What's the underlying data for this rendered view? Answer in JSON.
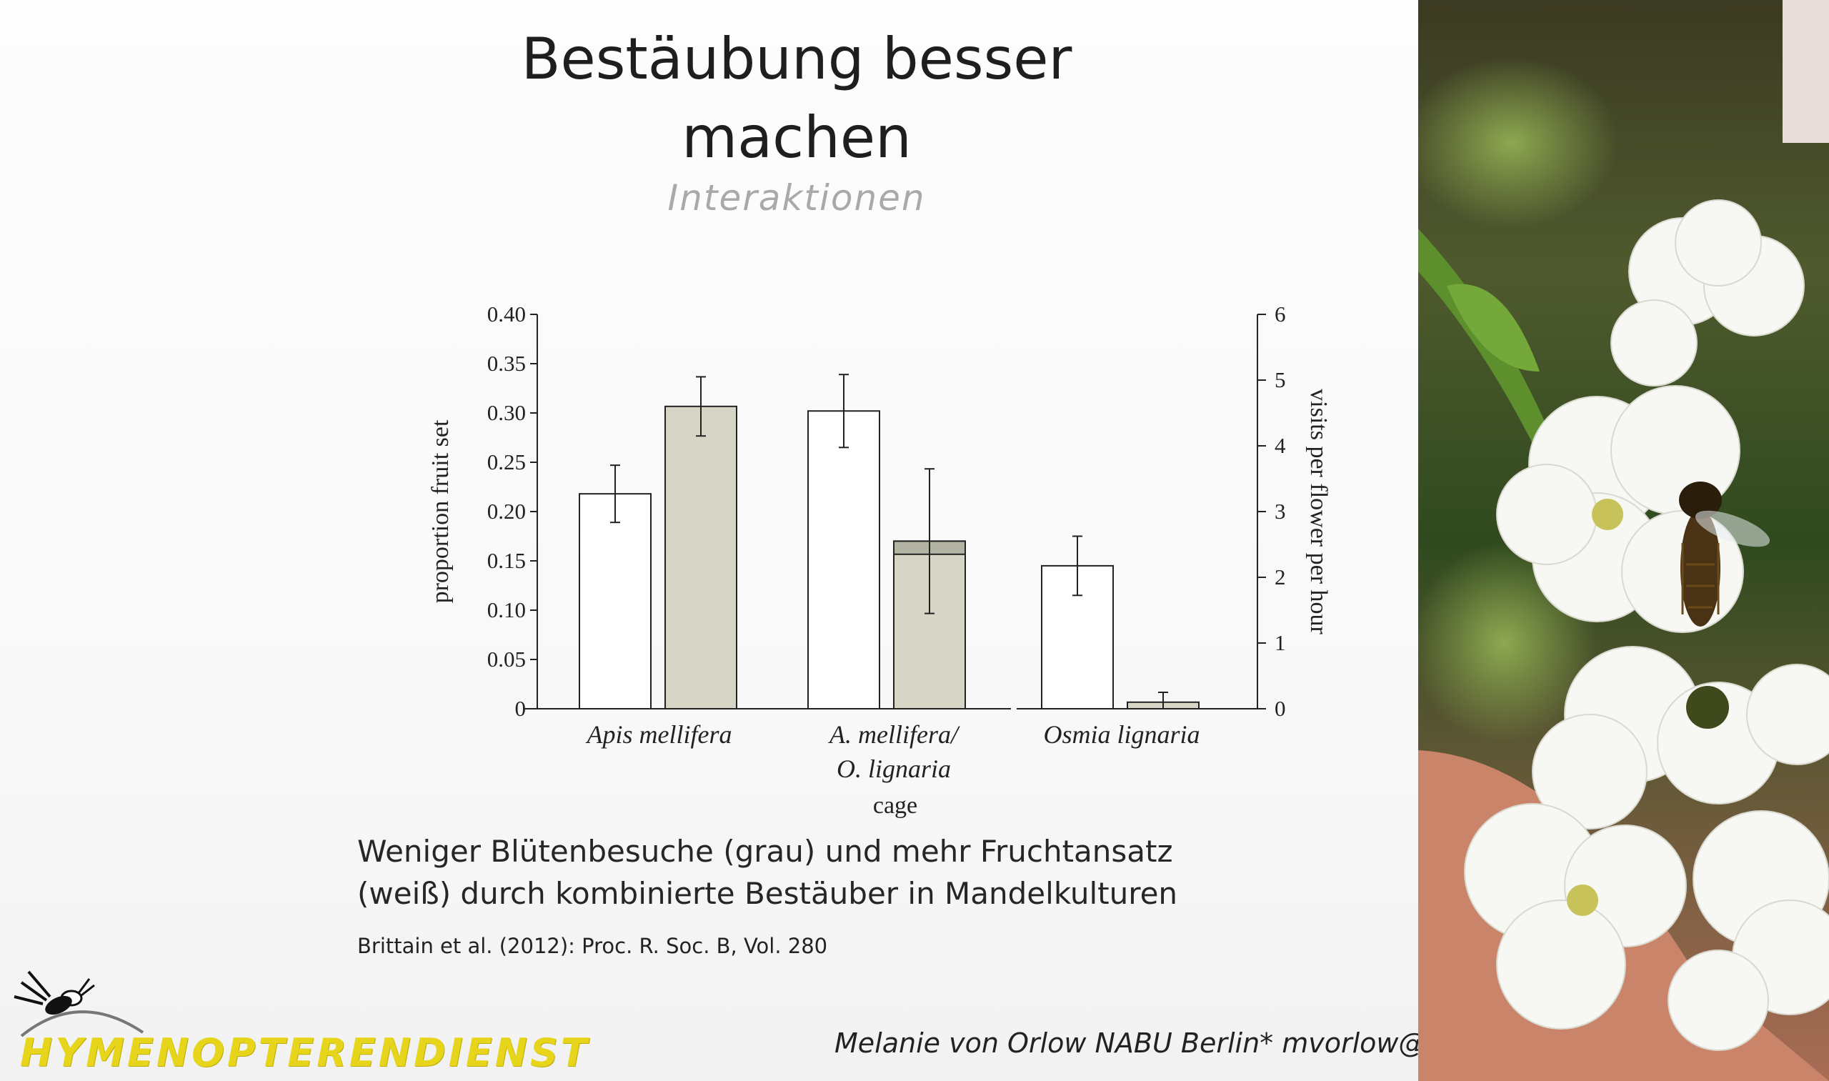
{
  "slide": {
    "title_line1": "Bestäubung besser",
    "title_line2": "machen",
    "subtitle": "Interaktionen",
    "caption_line1": "Weniger Blütenbesuche (grau) und mehr Fruchtansatz",
    "caption_line2": "(weiß) durch kombinierte Bestäuber in Mandelkulturen",
    "citation": "Brittain et al. (2012): Proc. R. Soc. B, Vol. 280",
    "logo_text": "HYMENOPTERENDIENST",
    "footer": "Melanie von Orlow NABU Berlin* mvorlow@nabu-berlin.de"
  },
  "colors": {
    "white_bar": "#ffffff",
    "grey_bar": "#d6d5c6",
    "grey_bar_dark": "#b3b3a4",
    "axis": "#222222",
    "logo": "#e7d51b"
  },
  "chart_data": {
    "type": "bar",
    "categories": [
      "Apis mellifera",
      "A. mellifera/ O. lignaria",
      "Osmia lignaria"
    ],
    "category_lines": [
      [
        "Apis mellifera"
      ],
      [
        "A. mellifera/",
        "O. lignaria"
      ],
      [
        "Osmia lignaria"
      ]
    ],
    "xlabel": "cage",
    "ylabel_left": "proportion fruit set",
    "ylabel_right": "visits per flower per hour",
    "ylim_left": [
      0,
      0.4
    ],
    "ylim_right": [
      0,
      6
    ],
    "yticks_left": [
      "0.40",
      "0.35",
      "0.30",
      "0.25",
      "0.20",
      "0.15",
      "0.10",
      "0.05",
      "0"
    ],
    "yticks_left_values": [
      0.4,
      0.35,
      0.3,
      0.25,
      0.2,
      0.15,
      0.1,
      0.05,
      0
    ],
    "yticks_right": [
      "6",
      "5",
      "4",
      "3",
      "2",
      "1",
      "0"
    ],
    "yticks_right_values": [
      6,
      5,
      4,
      3,
      2,
      1,
      0
    ],
    "series": [
      {
        "axis": "left",
        "values": [
          0.218,
          0.302,
          0.145
        ],
        "error": [
          0.029,
          0.037,
          0.03
        ]
      },
      {
        "axis": "right",
        "values": [
          4.6,
          2.55,
          0.1
        ],
        "error": [
          0.45,
          1.1,
          0.15
        ],
        "overlap_value": 2.35
      }
    ]
  }
}
